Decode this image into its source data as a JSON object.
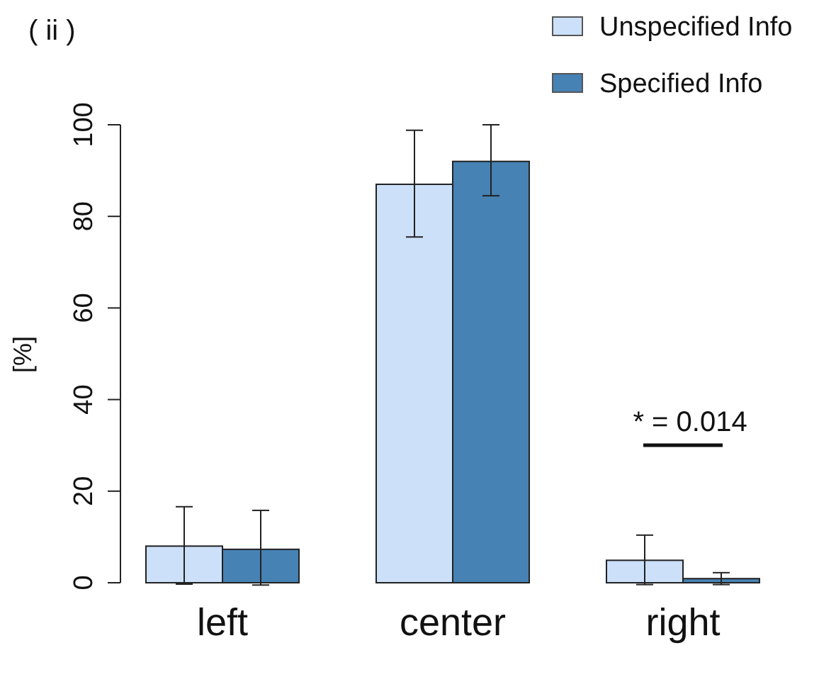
{
  "chart_data": {
    "type": "bar",
    "title": "( ii )",
    "ylabel": "[%]",
    "categories": [
      "left",
      "center",
      "right"
    ],
    "series": [
      {
        "name": "Unspecified Info",
        "color": "#cce0fa",
        "values": [
          8.0,
          87,
          4.9
        ],
        "errors": [
          [
            -0.3,
            16.6
          ],
          [
            75.5,
            98.8
          ],
          [
            -0.4,
            10.4
          ]
        ]
      },
      {
        "name": "Specified Info",
        "color": "#4682b4",
        "values": [
          7.3,
          92,
          0.9
        ],
        "errors": [
          [
            -0.5,
            15.8
          ],
          [
            84.5,
            100
          ],
          [
            -0.4,
            2.2
          ]
        ]
      }
    ],
    "ylim": [
      0,
      100
    ],
    "yticks": [
      0,
      20,
      40,
      60,
      80,
      100
    ],
    "grid": false,
    "legend": "top right",
    "annotations": [
      "* = 0.014"
    ]
  }
}
